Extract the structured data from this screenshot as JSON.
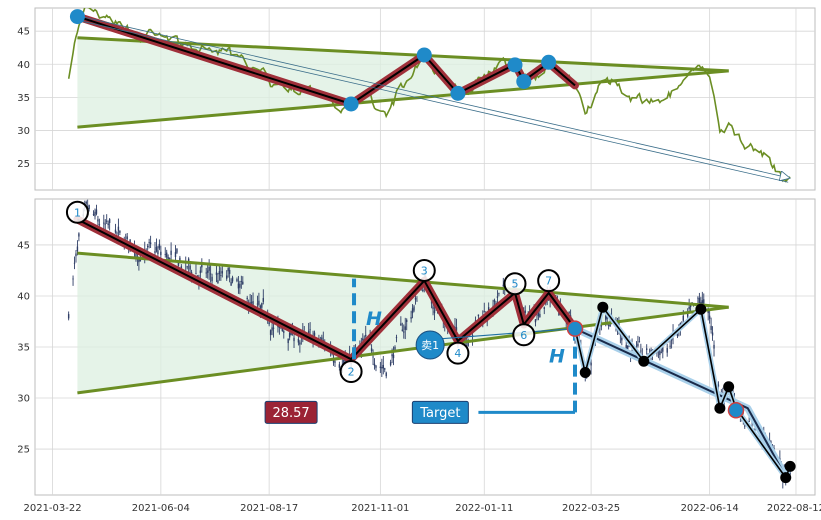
{
  "chart_data": {
    "type": "line",
    "title": "",
    "x_dates": [
      "2021-03-22",
      "2021-06-04",
      "2021-08-17",
      "2021-11-01",
      "2022-01-11",
      "2022-03-25",
      "2022-06-14",
      "2022-08-12"
    ],
    "x_range": [
      "2021-03-10",
      "2022-08-25"
    ],
    "top_panel": {
      "y_ticks": [
        25,
        30,
        35,
        40,
        45
      ],
      "y_range": [
        21,
        48.5
      ],
      "series": [
        {
          "type": "line",
          "color": "#6b8e23"
        }
      ],
      "overlays": {
        "zigzag": [
          [
            "2021-04-08",
            47.2
          ],
          [
            "2021-10-12",
            34.0
          ],
          [
            "2021-12-01",
            41.4
          ],
          [
            "2021-12-24",
            35.6
          ],
          [
            "2022-02-01",
            40.0
          ],
          [
            "2022-02-07",
            37.5
          ],
          [
            "2022-02-24",
            40.2
          ],
          [
            "2022-03-14",
            36.8
          ]
        ],
        "upper_line": [
          [
            "2021-04-08",
            44.0
          ],
          [
            "2022-06-27",
            39.0
          ]
        ],
        "lower_line": [
          [
            "2021-04-08",
            30.5
          ],
          [
            "2022-06-27",
            39.0
          ]
        ],
        "trend_arrow": [
          [
            "2021-04-08",
            47.0
          ],
          [
            "2022-08-07",
            22.5
          ]
        ],
        "dots": [
          [
            "2021-04-08",
            47.2
          ],
          [
            "2021-10-12",
            34.0
          ],
          [
            "2021-12-01",
            41.4
          ],
          [
            "2021-12-24",
            35.6
          ],
          [
            "2022-02-01",
            39.9
          ],
          [
            "2022-02-07",
            37.4
          ],
          [
            "2022-02-24",
            40.3
          ]
        ]
      }
    },
    "bottom_panel": {
      "y_ticks": [
        25,
        30,
        35,
        40,
        45
      ],
      "y_range": [
        20.5,
        49.5
      ],
      "series": [
        {
          "type": "candlestick",
          "color": "#2f3e66"
        }
      ],
      "overlays": {
        "zigzag": [
          [
            "2021-04-08",
            47.5
          ],
          [
            "2021-10-12",
            33.8
          ],
          [
            "2021-12-01",
            41.5
          ],
          [
            "2021-12-24",
            35.6
          ],
          [
            "2022-02-01",
            40.3
          ],
          [
            "2022-02-07",
            37.2
          ],
          [
            "2022-02-24",
            40.3
          ],
          [
            "2022-03-14",
            36.8
          ]
        ],
        "labeled_vertices": [
          {
            "label": "1",
            "date": "2021-04-08",
            "value": 48.2
          },
          {
            "label": "2",
            "date": "2021-10-12",
            "value": 32.6
          },
          {
            "label": "3",
            "date": "2021-12-01",
            "value": 42.5
          },
          {
            "label": "4",
            "date": "2021-12-24",
            "value": 34.4
          },
          {
            "label": "5",
            "date": "2022-02-01",
            "value": 41.2
          },
          {
            "label": "6",
            "date": "2022-02-07",
            "value": 36.2
          },
          {
            "label": "7",
            "date": "2022-02-24",
            "value": 41.5
          }
        ],
        "upper_line": [
          [
            "2021-04-08",
            44.2
          ],
          [
            "2022-06-27",
            38.9
          ]
        ],
        "lower_line": [
          [
            "2021-04-08",
            30.5
          ],
          [
            "2022-06-27",
            38.9
          ]
        ],
        "height_marker_1": {
          "date": "2021-10-14",
          "from": 33.8,
          "to": 41.7,
          "label": "H"
        },
        "height_marker_2": {
          "date": "2022-03-14",
          "from": 36.8,
          "to": 28.6,
          "label": "H"
        },
        "target_line": {
          "value": 28.6,
          "from": "2022-01-07",
          "to": "2022-03-14"
        },
        "target_box": {
          "label": "Target",
          "date": "2021-12-12",
          "value": 28.6
        },
        "target_value_box": {
          "label": "28.57",
          "date": "2021-09-01",
          "value": 28.6
        },
        "sell_marker": {
          "label": "卖1",
          "date": "2021-12-05",
          "value": 35.2
        },
        "sell_arrow": [
          [
            "2021-12-12",
            35.8
          ],
          [
            "2022-03-13",
            36.8
          ]
        ],
        "projection_path": [
          [
            "2022-03-14",
            36.8
          ],
          [
            "2022-07-10",
            29.0
          ],
          [
            "2022-08-05",
            22.3
          ]
        ],
        "black_path": [
          [
            "2022-03-14",
            36.8
          ],
          [
            "2022-03-21",
            32.5
          ],
          [
            "2022-04-02",
            38.9
          ],
          [
            "2022-04-30",
            33.6
          ],
          [
            "2022-06-08",
            38.7
          ],
          [
            "2022-06-21",
            29.0
          ],
          [
            "2022-06-27",
            31.1
          ],
          [
            "2022-07-02",
            29.0
          ],
          [
            "2022-08-05",
            22.2
          ],
          [
            "2022-08-08",
            23.3
          ]
        ],
        "black_dots": [
          [
            "2022-03-21",
            32.5
          ],
          [
            "2022-04-02",
            38.9
          ],
          [
            "2022-04-30",
            33.6
          ],
          [
            "2022-06-08",
            38.7
          ],
          [
            "2022-06-21",
            29.0
          ],
          [
            "2022-06-27",
            31.1
          ],
          [
            "2022-08-05",
            22.2
          ],
          [
            "2022-08-08",
            23.3
          ]
        ],
        "blue_dots": [
          [
            "2022-03-14",
            36.8
          ],
          [
            "2022-07-02",
            28.8
          ]
        ]
      }
    }
  },
  "colors": {
    "price_line": "#6b8e23",
    "candle": "#2f3e66",
    "zigzag_fill": "#a0303a",
    "triangle": "#6b8e23",
    "triangle_fill": "#dcefe0",
    "blue": "#1f8ac9",
    "dark_red": "#9b2335",
    "black": "#000000",
    "grid": "#d6d6d6"
  }
}
